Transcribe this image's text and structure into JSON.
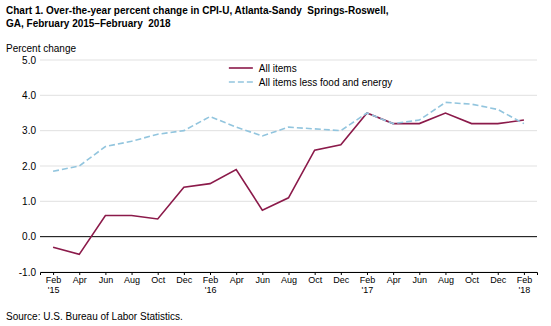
{
  "chart_data": {
    "type": "line",
    "title": "Chart 1. Over-the-year percent change in CPI-U, Atlanta-Sandy  Springs-Roswell,\nGA, February 2015–February  2018",
    "y_label": "Percent change",
    "annotations": [
      "Source: U.S. Bureau of Labor Statistics."
    ],
    "categories": [
      "Feb\n'15",
      "Apr",
      "Jun",
      "Aug",
      "Oct",
      "Dec",
      "Feb\n'16",
      "Apr",
      "Jun",
      "Aug",
      "Oct",
      "Dec",
      "Feb\n'17",
      "Apr",
      "Jun",
      "Aug",
      "Oct",
      "Dec",
      "Feb\n'18"
    ],
    "series": [
      {
        "name": "All items",
        "color": "#8B1A4A",
        "line_style": "solid",
        "values": [
          -0.3,
          -0.5,
          0.6,
          0.6,
          0.5,
          1.4,
          1.5,
          1.9,
          0.75,
          1.1,
          2.45,
          2.6,
          3.5,
          3.2,
          3.2,
          3.5,
          3.2,
          3.2,
          3.3
        ]
      },
      {
        "name": "All items less food and energy",
        "color": "#92C5DE",
        "line_style": "dashed",
        "values": [
          1.85,
          2.0,
          2.55,
          2.7,
          2.9,
          3.0,
          3.4,
          3.1,
          2.85,
          3.1,
          3.05,
          3.0,
          3.5,
          3.2,
          3.3,
          3.8,
          3.75,
          3.6,
          3.2
        ]
      }
    ],
    "ylim": [
      -1.0,
      5.0
    ],
    "yticks": [
      {
        "value": -1.0,
        "label": "-1.0"
      },
      {
        "value": 0.0,
        "label": "0.0"
      },
      {
        "value": 1.0,
        "label": "1.0"
      },
      {
        "value": 2.0,
        "label": "2.0"
      },
      {
        "value": 3.0,
        "label": "3.0"
      },
      {
        "value": 4.0,
        "label": "4.0"
      },
      {
        "value": 5.0,
        "label": "5.0"
      }
    ],
    "grid": true,
    "legend": "top"
  }
}
